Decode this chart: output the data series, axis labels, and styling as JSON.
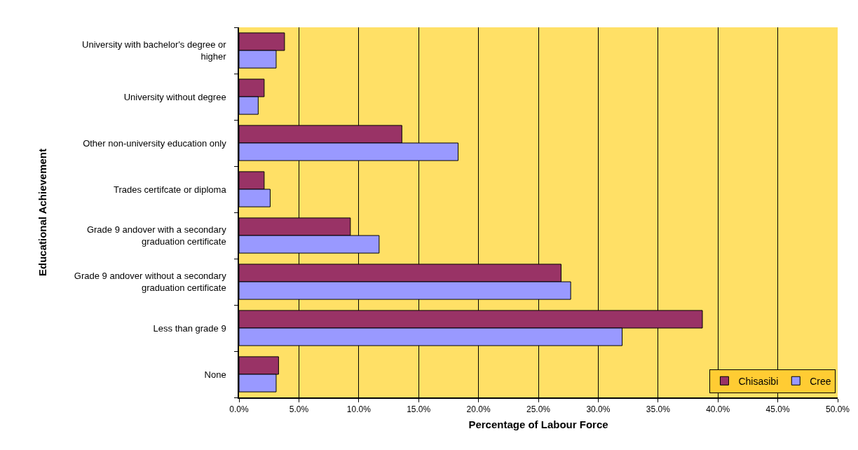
{
  "chart_data": {
    "type": "bar",
    "orientation": "horizontal",
    "xlabel": "Percentage of Labour Force",
    "ylabel": "Educational Achievement",
    "categories": [
      "University with bachelor's degree or higher",
      "University without degree",
      "Other non-university education only",
      "Trades certifcate or diploma",
      "Grade 9 andover with a secondary graduation certificate",
      "Grade 9 andover without a secondary graduation certificate",
      "Less than grade 9",
      "None"
    ],
    "series": [
      {
        "name": "Chisasibi",
        "color": "#993366",
        "values": [
          3.8,
          2.1,
          13.6,
          2.1,
          9.3,
          26.9,
          38.7,
          3.3
        ]
      },
      {
        "name": "Cree",
        "color": "#9999ff",
        "values": [
          3.1,
          1.6,
          18.3,
          2.6,
          11.7,
          27.7,
          32.0,
          3.1
        ]
      }
    ],
    "xlim": [
      0,
      50
    ],
    "xticks": [
      {
        "value": 0,
        "label": "0.0%"
      },
      {
        "value": 5,
        "label": "5.0%"
      },
      {
        "value": 10,
        "label": "10.0%"
      },
      {
        "value": 15,
        "label": "15.0%"
      },
      {
        "value": 20,
        "label": "20.0%"
      },
      {
        "value": 25,
        "label": "25.0%"
      },
      {
        "value": 30,
        "label": "30.0%"
      },
      {
        "value": 35,
        "label": "35.0%"
      },
      {
        "value": 40,
        "label": "40.0%"
      },
      {
        "value": 45,
        "label": "45.0%"
      },
      {
        "value": 50,
        "label": "50.0%"
      }
    ],
    "grid": "x",
    "legend": "bottom right"
  }
}
